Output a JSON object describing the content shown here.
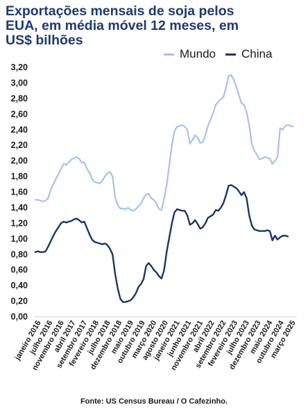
{
  "title_lines": [
    "Exportações mensais de soja pelos",
    "EUA, em média móvel 12 meses, em",
    "US$ bilhões"
  ],
  "source": "Fonte: US Census Bureau / O Cafezinho.",
  "colors": {
    "title": "#1f3a6e",
    "mundo": "#a9c0ec",
    "china": "#1b3563"
  },
  "chart_data": {
    "type": "line",
    "title": "Exportações mensais de soja pelos EUA, em média móvel 12 meses, em US$ bilhões",
    "ylim": [
      0,
      3.2
    ],
    "yticks": [
      "0,00",
      "0,20",
      "0,40",
      "0,60",
      "0,80",
      "1,00",
      "1,20",
      "1,40",
      "1,60",
      "1,80",
      "2,00",
      "2,20",
      "2,40",
      "2,60",
      "2,80",
      "3,00",
      "3,20"
    ],
    "grid": false,
    "legend_position": "top-right",
    "xtick_labels": [
      "janeiro 2016",
      "julho 2016",
      "novembro 2016",
      "abril 2017",
      "setembro 2017",
      "fevereiro 2018",
      "julho 2018",
      "dezembro 2018",
      "maio 2019",
      "outubro 2019",
      "março 2020",
      "agosto 2020",
      "janeiro 2021",
      "junho 2021",
      "novembro 2021",
      "abril 2022",
      "setembro 2022",
      "fevereiro 2023",
      "julho 2023",
      "dezembro 2023",
      "maio 2024",
      "outubro 2024",
      "março 2025"
    ],
    "x_start": "janeiro 2016",
    "x_end": "junho 2025",
    "series": [
      {
        "name": "Mundo",
        "color": "#a9c0ec",
        "points": [
          [
            0,
            1.5
          ],
          [
            1,
            1.5
          ],
          [
            2,
            1.49
          ],
          [
            3,
            1.48
          ],
          [
            4,
            1.49
          ],
          [
            5,
            1.52
          ],
          [
            6,
            1.63
          ],
          [
            7,
            1.7
          ],
          [
            8,
            1.77
          ],
          [
            9,
            1.83
          ],
          [
            10,
            1.9
          ],
          [
            11,
            1.96
          ],
          [
            12,
            1.95
          ],
          [
            13,
            1.98
          ],
          [
            14,
            2.02
          ],
          [
            15,
            2.03
          ],
          [
            16,
            2.05
          ],
          [
            17,
            2.03
          ],
          [
            18,
            1.98
          ],
          [
            19,
            1.98
          ],
          [
            20,
            1.9
          ],
          [
            21,
            1.85
          ],
          [
            22,
            1.77
          ],
          [
            23,
            1.73
          ],
          [
            24,
            1.72
          ],
          [
            25,
            1.71
          ],
          [
            26,
            1.75
          ],
          [
            27,
            1.8
          ],
          [
            28,
            1.84
          ],
          [
            29,
            1.86
          ],
          [
            30,
            1.8
          ],
          [
            31,
            1.53
          ],
          [
            32,
            1.43
          ],
          [
            33,
            1.39
          ],
          [
            34,
            1.39
          ],
          [
            35,
            1.38
          ],
          [
            36,
            1.4
          ],
          [
            37,
            1.37
          ],
          [
            38,
            1.36
          ],
          [
            39,
            1.38
          ],
          [
            40,
            1.42
          ],
          [
            41,
            1.45
          ],
          [
            42,
            1.52
          ],
          [
            43,
            1.57
          ],
          [
            44,
            1.58
          ],
          [
            45,
            1.52
          ],
          [
            46,
            1.5
          ],
          [
            47,
            1.45
          ],
          [
            48,
            1.38
          ],
          [
            49,
            1.37
          ],
          [
            50,
            1.52
          ],
          [
            51,
            1.7
          ],
          [
            52,
            1.95
          ],
          [
            53,
            2.2
          ],
          [
            54,
            2.38
          ],
          [
            55,
            2.44
          ],
          [
            56,
            2.45
          ],
          [
            57,
            2.46
          ],
          [
            58,
            2.44
          ],
          [
            59,
            2.4
          ],
          [
            60,
            2.22
          ],
          [
            61,
            2.27
          ],
          [
            62,
            2.33
          ],
          [
            63,
            2.3
          ],
          [
            64,
            2.23
          ],
          [
            65,
            2.24
          ],
          [
            66,
            2.33
          ],
          [
            67,
            2.45
          ],
          [
            68,
            2.53
          ],
          [
            69,
            2.62
          ],
          [
            70,
            2.72
          ],
          [
            71,
            2.76
          ],
          [
            72,
            2.79
          ],
          [
            73,
            2.82
          ],
          [
            74,
            2.94
          ],
          [
            75,
            3.09
          ],
          [
            76,
            3.1
          ],
          [
            77,
            3.04
          ],
          [
            78,
            2.95
          ],
          [
            79,
            2.84
          ],
          [
            80,
            2.74
          ],
          [
            81,
            2.72
          ],
          [
            82,
            2.63
          ],
          [
            83,
            2.45
          ],
          [
            84,
            2.22
          ],
          [
            85,
            2.13
          ],
          [
            86,
            2.08
          ],
          [
            87,
            2.02
          ],
          [
            88,
            2.03
          ],
          [
            89,
            2.05
          ],
          [
            90,
            2.04
          ],
          [
            91,
            2.03
          ],
          [
            92,
            1.96
          ],
          [
            93,
            2.0
          ],
          [
            94,
            2.05
          ],
          [
            95,
            2.42
          ],
          [
            96,
            2.4
          ],
          [
            97,
            2.45
          ],
          [
            98,
            2.46
          ],
          [
            99,
            2.45
          ],
          [
            100,
            2.44
          ]
        ]
      },
      {
        "name": "China",
        "color": "#1b3563",
        "points": [
          [
            0,
            0.83
          ],
          [
            1,
            0.84
          ],
          [
            2,
            0.83
          ],
          [
            3,
            0.83
          ],
          [
            4,
            0.84
          ],
          [
            5,
            0.9
          ],
          [
            6,
            0.97
          ],
          [
            7,
            1.04
          ],
          [
            8,
            1.1
          ],
          [
            9,
            1.15
          ],
          [
            10,
            1.2
          ],
          [
            11,
            1.22
          ],
          [
            12,
            1.21
          ],
          [
            13,
            1.22
          ],
          [
            14,
            1.23
          ],
          [
            15,
            1.25
          ],
          [
            16,
            1.26
          ],
          [
            17,
            1.24
          ],
          [
            18,
            1.21
          ],
          [
            19,
            1.22
          ],
          [
            20,
            1.14
          ],
          [
            21,
            1.06
          ],
          [
            22,
            0.99
          ],
          [
            23,
            0.96
          ],
          [
            24,
            0.95
          ],
          [
            25,
            0.94
          ],
          [
            26,
            0.93
          ],
          [
            27,
            0.94
          ],
          [
            28,
            0.92
          ],
          [
            29,
            0.87
          ],
          [
            30,
            0.8
          ],
          [
            31,
            0.55
          ],
          [
            32,
            0.36
          ],
          [
            33,
            0.23
          ],
          [
            34,
            0.19
          ],
          [
            35,
            0.19
          ],
          [
            36,
            0.2
          ],
          [
            37,
            0.21
          ],
          [
            38,
            0.25
          ],
          [
            39,
            0.3
          ],
          [
            40,
            0.38
          ],
          [
            41,
            0.42
          ],
          [
            42,
            0.48
          ],
          [
            43,
            0.65
          ],
          [
            44,
            0.69
          ],
          [
            45,
            0.65
          ],
          [
            46,
            0.6
          ],
          [
            47,
            0.57
          ],
          [
            48,
            0.52
          ],
          [
            49,
            0.49
          ],
          [
            50,
            0.6
          ],
          [
            51,
            0.84
          ],
          [
            52,
            1.02
          ],
          [
            53,
            1.2
          ],
          [
            54,
            1.34
          ],
          [
            55,
            1.38
          ],
          [
            56,
            1.37
          ],
          [
            57,
            1.36
          ],
          [
            58,
            1.36
          ],
          [
            59,
            1.3
          ],
          [
            60,
            1.18
          ],
          [
            61,
            1.2
          ],
          [
            62,
            1.24
          ],
          [
            63,
            1.19
          ],
          [
            64,
            1.13
          ],
          [
            65,
            1.15
          ],
          [
            66,
            1.2
          ],
          [
            67,
            1.27
          ],
          [
            68,
            1.29
          ],
          [
            69,
            1.31
          ],
          [
            70,
            1.37
          ],
          [
            71,
            1.36
          ],
          [
            72,
            1.4
          ],
          [
            73,
            1.46
          ],
          [
            74,
            1.56
          ],
          [
            75,
            1.68
          ],
          [
            76,
            1.69
          ],
          [
            77,
            1.67
          ],
          [
            78,
            1.65
          ],
          [
            79,
            1.61
          ],
          [
            80,
            1.56
          ],
          [
            81,
            1.6
          ],
          [
            82,
            1.52
          ],
          [
            83,
            1.3
          ],
          [
            84,
            1.17
          ],
          [
            85,
            1.12
          ],
          [
            86,
            1.11
          ],
          [
            87,
            1.1
          ],
          [
            88,
            1.1
          ],
          [
            89,
            1.1
          ],
          [
            90,
            1.11
          ],
          [
            91,
            1.1
          ],
          [
            92,
            0.98
          ],
          [
            93,
            1.04
          ],
          [
            94,
            0.99
          ],
          [
            95,
            1.02
          ],
          [
            96,
            1.04
          ],
          [
            97,
            1.04
          ],
          [
            98,
            1.03
          ]
        ]
      }
    ]
  }
}
